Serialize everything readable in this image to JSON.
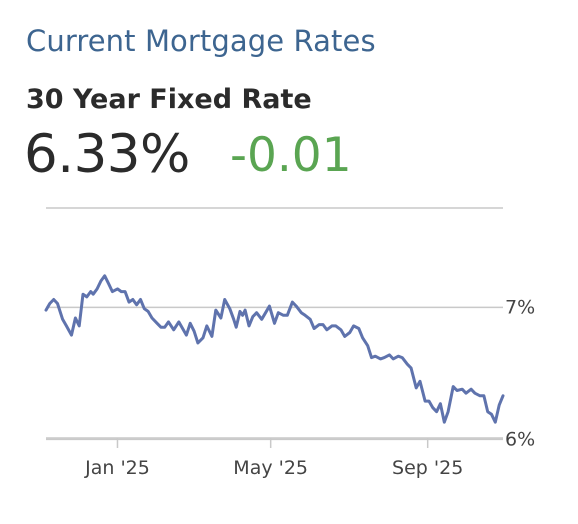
{
  "widget": {
    "headline": "Current Mortgage Rates",
    "subtitle": "30 Year Fixed Rate",
    "rate": "6.33%",
    "change": "-0.01",
    "colors": {
      "headline": "#3d6590",
      "line": "#5f73ad",
      "change": "#5aa552",
      "grid": "#c9c9c9"
    }
  },
  "chart_data": {
    "type": "line",
    "title": "",
    "xlabel": "",
    "ylabel": "",
    "grid": true,
    "ylim": [
      5.98,
      7.42
    ],
    "xlim": [
      "2024-11-06",
      "2025-10-30"
    ],
    "x_ticks": [
      {
        "date": "2025-01-01",
        "label": "Jan '25"
      },
      {
        "date": "2025-05-01",
        "label": "May '25"
      },
      {
        "date": "2025-09-01",
        "label": "Sep '25"
      }
    ],
    "y_ticks": [
      {
        "value": 7,
        "label": "7%"
      },
      {
        "value": 6,
        "label": "6%"
      }
    ],
    "series": [
      {
        "name": "",
        "x": [
          "2024-11-06",
          "2024-11-09",
          "2024-11-12",
          "2024-11-15",
          "2024-11-19",
          "2024-11-22",
          "2024-11-26",
          "2024-11-29",
          "2024-12-02",
          "2024-12-05",
          "2024-12-08",
          "2024-12-11",
          "2024-12-13",
          "2024-12-16",
          "2024-12-19",
          "2024-12-22",
          "2024-12-25",
          "2024-12-28",
          "2025-01-01",
          "2025-01-04",
          "2025-01-07",
          "2025-01-10",
          "2025-01-13",
          "2025-01-16",
          "2025-01-19",
          "2025-01-22",
          "2025-01-25",
          "2025-01-28",
          "2025-02-01",
          "2025-02-04",
          "2025-02-07",
          "2025-02-10",
          "2025-02-14",
          "2025-02-18",
          "2025-02-21",
          "2025-02-24",
          "2025-02-27",
          "2025-03-02",
          "2025-03-05",
          "2025-03-09",
          "2025-03-12",
          "2025-03-16",
          "2025-03-19",
          "2025-03-23",
          "2025-03-26",
          "2025-03-30",
          "2025-04-02",
          "2025-04-04",
          "2025-04-07",
          "2025-04-09",
          "2025-04-11",
          "2025-04-14",
          "2025-04-17",
          "2025-04-20",
          "2025-04-24",
          "2025-04-27",
          "2025-04-30",
          "2025-05-04",
          "2025-05-07",
          "2025-05-11",
          "2025-05-14",
          "2025-05-18",
          "2025-05-21",
          "2025-05-25",
          "2025-05-28",
          "2025-06-01",
          "2025-06-04",
          "2025-06-08",
          "2025-06-11",
          "2025-06-14",
          "2025-06-18",
          "2025-06-21",
          "2025-06-25",
          "2025-06-28",
          "2025-07-02",
          "2025-07-05",
          "2025-07-09",
          "2025-07-12",
          "2025-07-16",
          "2025-07-19",
          "2025-07-22",
          "2025-07-26",
          "2025-07-29",
          "2025-08-02",
          "2025-08-05",
          "2025-08-09",
          "2025-08-12",
          "2025-08-16",
          "2025-08-19",
          "2025-08-23",
          "2025-08-26",
          "2025-08-30",
          "2025-09-02",
          "2025-09-05",
          "2025-09-08",
          "2025-09-11",
          "2025-09-14",
          "2025-09-17",
          "2025-09-21",
          "2025-09-24",
          "2025-09-28",
          "2025-10-01",
          "2025-10-05",
          "2025-10-08",
          "2025-10-12",
          "2025-10-15",
          "2025-10-18",
          "2025-10-21",
          "2025-10-24",
          "2025-10-27",
          "2025-10-30"
        ],
        "y": [
          6.98,
          7.03,
          7.06,
          7.03,
          6.91,
          6.86,
          6.79,
          6.92,
          6.86,
          7.1,
          7.08,
          7.12,
          7.1,
          7.14,
          7.2,
          7.24,
          7.18,
          7.12,
          7.14,
          7.12,
          7.12,
          7.04,
          7.06,
          7.02,
          7.06,
          6.99,
          6.97,
          6.92,
          6.88,
          6.85,
          6.85,
          6.89,
          6.83,
          6.89,
          6.84,
          6.79,
          6.88,
          6.82,
          6.73,
          6.77,
          6.86,
          6.78,
          6.98,
          6.92,
          7.06,
          6.99,
          6.91,
          6.85,
          6.97,
          6.94,
          6.98,
          6.86,
          6.93,
          6.96,
          6.91,
          6.96,
          7.01,
          6.88,
          6.96,
          6.94,
          6.94,
          7.04,
          7.01,
          6.96,
          6.94,
          6.91,
          6.84,
          6.87,
          6.87,
          6.83,
          6.86,
          6.86,
          6.83,
          6.78,
          6.81,
          6.86,
          6.84,
          6.77,
          6.71,
          6.62,
          6.63,
          6.61,
          6.62,
          6.64,
          6.61,
          6.63,
          6.62,
          6.57,
          6.54,
          6.39,
          6.44,
          6.29,
          6.29,
          6.24,
          6.21,
          6.27,
          6.13,
          6.21,
          6.4,
          6.37,
          6.38,
          6.35,
          6.38,
          6.35,
          6.33,
          6.33,
          6.21,
          6.19,
          6.13,
          6.26,
          6.33
        ]
      }
    ]
  }
}
